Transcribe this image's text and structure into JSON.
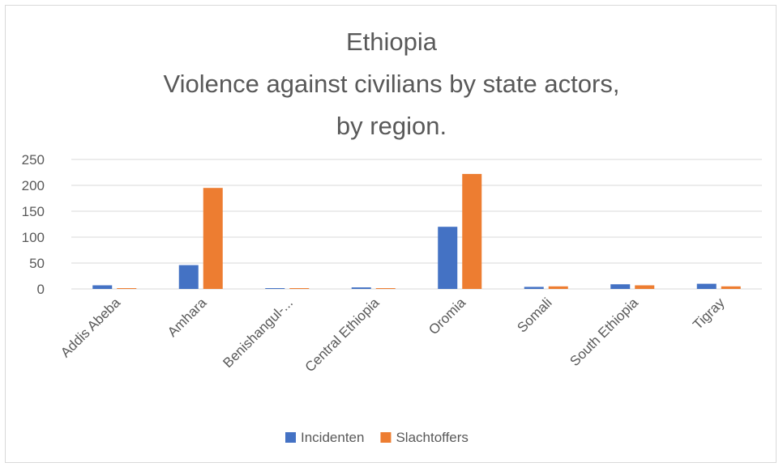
{
  "chart_data": {
    "type": "bar",
    "title": [
      "Ethiopia",
      "Violence against civilians by state actors,",
      "by region."
    ],
    "categories": [
      "Addis Abeba",
      "Amhara",
      "Benishangul-...",
      "Central Ethiopia",
      "Oromia",
      "Somali",
      "South Ethiopia",
      "Tigray"
    ],
    "series": [
      {
        "name": "Incidenten",
        "color": "#4472C4",
        "values": [
          7,
          46,
          1,
          3,
          120,
          4,
          9,
          10
        ]
      },
      {
        "name": "Slachtoffers",
        "color": "#ED7D31",
        "values": [
          1,
          195,
          0,
          0,
          222,
          5,
          7,
          5
        ]
      }
    ],
    "ylim": [
      0,
      250
    ],
    "yticks": [
      0,
      50,
      100,
      150,
      200,
      250
    ],
    "grid": true,
    "legend": "bottom",
    "xlabel": "",
    "ylabel": ""
  }
}
